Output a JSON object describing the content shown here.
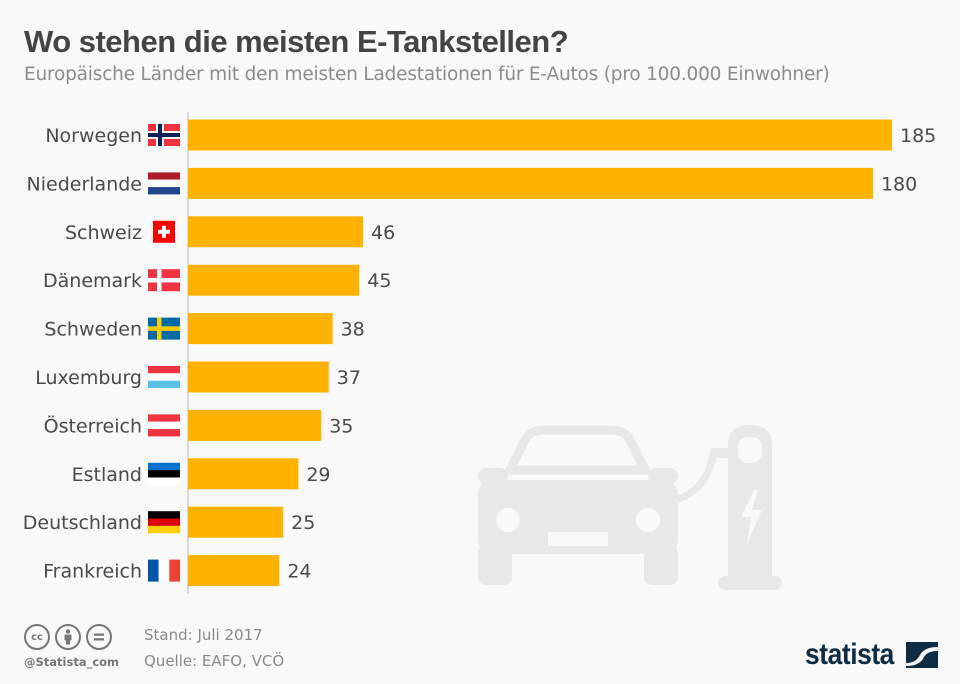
{
  "header": {
    "title": "Wo stehen die meisten E-Tankstellen?",
    "subtitle": "Europäische Länder mit den meisten Ladestationen für E-Autos (pro 100.000 Einwohner)"
  },
  "chart_data": {
    "type": "bar",
    "orientation": "horizontal",
    "title": "Wo stehen die meisten E-Tankstellen?",
    "subtitle": "Europäische Länder mit den meisten Ladestationen für E-Autos (pro 100.000 Einwohner)",
    "xlabel": "",
    "ylabel": "",
    "categories": [
      "Norwegen",
      "Niederlande",
      "Schweiz",
      "Dänemark",
      "Schweden",
      "Luxemburg",
      "Österreich",
      "Estland",
      "Deutschland",
      "Frankreich"
    ],
    "values": [
      185,
      180,
      46,
      45,
      38,
      37,
      35,
      29,
      25,
      24
    ],
    "flags": [
      "norway",
      "netherlands",
      "switzerland",
      "denmark",
      "sweden",
      "luxembourg",
      "austria",
      "estonia",
      "germany",
      "france"
    ],
    "xlim": [
      0,
      185
    ],
    "grid": false,
    "bar_color": "#ffb300",
    "data_labels": true
  },
  "illustration": {
    "icon": "electric-car-charging-icon",
    "color": "#e6e6e6"
  },
  "footer": {
    "license_icons": [
      "cc-icon",
      "attribution-icon",
      "no-derivatives-icon"
    ],
    "handle": "@Statista_com",
    "stand": "Stand: Juli 2017",
    "source": "Quelle: EAFO, VCÖ",
    "logo_text": "statista"
  },
  "colors": {
    "accent": "#ffb300",
    "title": "#444444",
    "logo": "#0f2c45"
  }
}
